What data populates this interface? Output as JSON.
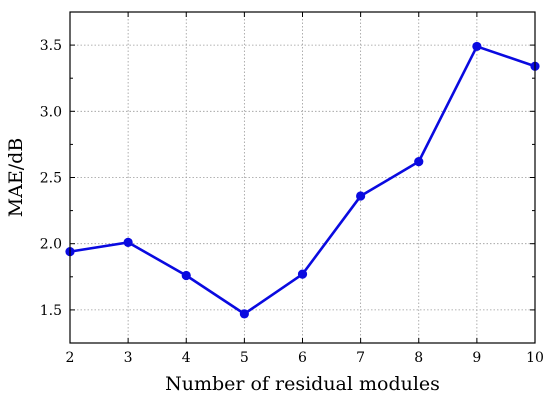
{
  "chart_data": {
    "type": "line",
    "title": "",
    "xlabel": "Number of residual modules",
    "ylabel": "MAE/dB",
    "xlim": [
      2,
      10
    ],
    "ylim": [
      1.25,
      3.75
    ],
    "grid": true,
    "x_ticks": [
      "2",
      "3",
      "4",
      "5",
      "6",
      "7",
      "8",
      "9",
      "10"
    ],
    "y_ticks": [
      "1.5",
      "2.0",
      "2.5",
      "3.0",
      "3.5"
    ],
    "series": [
      {
        "color": "#0a0ae0",
        "x": [
          2,
          3,
          4,
          5,
          6,
          7,
          8,
          9,
          10
        ],
        "y": [
          1.94,
          2.01,
          1.76,
          1.47,
          1.77,
          2.36,
          2.62,
          3.49,
          3.34
        ]
      }
    ]
  }
}
